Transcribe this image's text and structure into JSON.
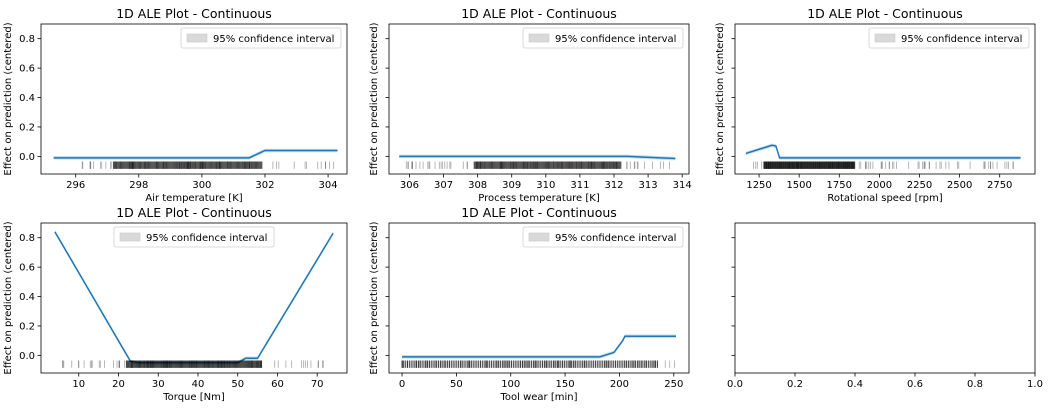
{
  "figure": {
    "panel_title": "1D ALE Plot - Continuous",
    "legend_label": "95% confidence interval",
    "ylabel": "Effect on prediction (centered)"
  },
  "chart_data": [
    {
      "type": "line",
      "title": "1D ALE Plot - Continuous",
      "xlabel": "Air temperature [K]",
      "ylabel": "Effect on prediction (centered)",
      "xlim": [
        294.9,
        304.6
      ],
      "ylim": [
        -0.12,
        0.9
      ],
      "xticks": [
        296,
        298,
        300,
        302,
        304
      ],
      "yticks": [
        0.0,
        0.2,
        0.4,
        0.6,
        0.8
      ],
      "ytick_labels": [
        "0.0",
        "0.2",
        "0.4",
        "0.6",
        "0.8"
      ],
      "legend": {
        "label": "95% confidence interval",
        "position": "upper right"
      },
      "series": [
        {
          "x": [
            295.3,
            301.5,
            301.9,
            302.0,
            304.3
          ],
          "y": [
            -0.01,
            -0.01,
            0.03,
            0.04,
            0.04
          ]
        }
      ],
      "rug": {
        "range": [
          295.8,
          304.3
        ],
        "dense": [
          297.2,
          301.9
        ]
      }
    },
    {
      "type": "line",
      "title": "1D ALE Plot - Continuous",
      "xlabel": "Process temperature [K]",
      "ylabel": "Effect on prediction (centered)",
      "xlim": [
        305.4,
        314.2
      ],
      "ylim": [
        -0.12,
        0.9
      ],
      "xticks": [
        306,
        307,
        308,
        309,
        310,
        311,
        312,
        313,
        314
      ],
      "yticks": [
        0.0,
        0.2,
        0.4,
        0.6,
        0.8
      ],
      "ytick_labels": [],
      "legend": {
        "label": "95% confidence interval",
        "position": "upper right"
      },
      "series": [
        {
          "x": [
            305.7,
            312.4,
            313.8
          ],
          "y": [
            0.0,
            0.0,
            -0.015
          ]
        }
      ],
      "rug": {
        "range": [
          305.9,
          313.7
        ],
        "dense": [
          307.9,
          312.2
        ]
      }
    },
    {
      "type": "line",
      "title": "1D ALE Plot - Continuous",
      "xlabel": "Rotational speed [rpm]",
      "ylabel": "Effect on prediction (centered)",
      "xlim": [
        1100,
        2970
      ],
      "ylim": [
        -0.12,
        0.9
      ],
      "xticks": [
        1250,
        1500,
        1750,
        2000,
        2250,
        2500,
        2750
      ],
      "yticks": [
        0.0,
        0.2,
        0.4,
        0.6,
        0.8
      ],
      "ytick_labels": [],
      "legend": {
        "label": "95% confidence interval",
        "position": "upper right"
      },
      "series": [
        {
          "x": [
            1168,
            1330,
            1355,
            1378,
            2880
          ],
          "y": [
            0.02,
            0.075,
            0.07,
            -0.01,
            -0.01
          ]
        }
      ],
      "rug": {
        "range": [
          1180,
          2850
        ],
        "dense": [
          1280,
          1850
        ]
      }
    },
    {
      "type": "line",
      "title": "1D ALE Plot - Continuous",
      "xlabel": "Torque [Nm]",
      "ylabel": "Effect on prediction (centered)",
      "xlim": [
        0.5,
        77.5
      ],
      "ylim": [
        -0.12,
        0.9
      ],
      "xticks": [
        10,
        20,
        30,
        40,
        50,
        60,
        70
      ],
      "yticks": [
        0.0,
        0.2,
        0.4,
        0.6,
        0.8
      ],
      "ytick_labels": [
        "0.0",
        "0.2",
        "0.4",
        "0.6",
        "0.8"
      ],
      "legend": {
        "label": "95% confidence interval",
        "position": "upper center"
      },
      "series": [
        {
          "x": [
            4,
            23,
            25,
            50,
            52,
            55,
            74
          ],
          "y": [
            0.84,
            -0.04,
            -0.05,
            -0.05,
            -0.02,
            -0.02,
            0.83
          ]
        }
      ],
      "rug": {
        "range": [
          4,
          74
        ],
        "dense": [
          22,
          56
        ]
      }
    },
    {
      "type": "line",
      "title": "1D ALE Plot - Continuous",
      "xlabel": "Tool wear [min]",
      "ylabel": "Effect on prediction (centered)",
      "xlim": [
        -12,
        264
      ],
      "ylim": [
        -0.12,
        0.9
      ],
      "xticks": [
        0,
        50,
        100,
        150,
        200,
        250
      ],
      "yticks": [
        0.0,
        0.2,
        0.4,
        0.6,
        0.8
      ],
      "ytick_labels": [],
      "legend": {
        "label": "95% confidence interval",
        "position": "upper right"
      },
      "series": [
        {
          "x": [
            0,
            182,
            195,
            203,
            205,
            252
          ],
          "y": [
            -0.01,
            -0.01,
            0.02,
            0.1,
            0.13,
            0.13
          ]
        }
      ],
      "rug": {
        "range": [
          0,
          252
        ],
        "dense": [
          0,
          235
        ]
      }
    },
    {
      "type": "line",
      "title": "",
      "xlabel": "",
      "ylabel": "",
      "xlim": [
        0,
        1
      ],
      "ylim": [
        -0.12,
        0.9
      ],
      "xticks": [
        0.0,
        0.2,
        0.4,
        0.6,
        0.8,
        1.0
      ],
      "xtick_labels": [
        "0.0",
        "0.2",
        "0.4",
        "0.6",
        "0.8",
        "1.0"
      ],
      "yticks": [
        0.0,
        0.2,
        0.4,
        0.6,
        0.8
      ],
      "ytick_labels": [],
      "empty": true,
      "series": []
    }
  ]
}
